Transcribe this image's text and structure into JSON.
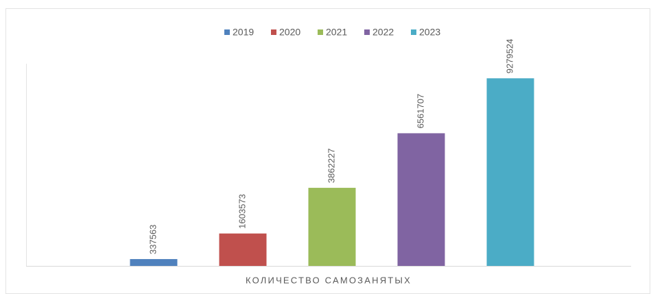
{
  "chart_data": {
    "type": "bar",
    "categories": [
      "КОЛИЧЕСТВО САМОЗАНЯТЫХ"
    ],
    "series": [
      {
        "name": "2019",
        "color": "#4f81bd",
        "values": [
          337563
        ]
      },
      {
        "name": "2020",
        "color": "#c0504d",
        "values": [
          1603573
        ]
      },
      {
        "name": "2021",
        "color": "#9bbb59",
        "values": [
          3862227
        ]
      },
      {
        "name": "2022",
        "color": "#8064a2",
        "values": [
          6561707
        ]
      },
      {
        "name": "2023",
        "color": "#4bacc6",
        "values": [
          9279524
        ]
      }
    ],
    "ylim": [
      0,
      10000000
    ],
    "legend": "top"
  }
}
